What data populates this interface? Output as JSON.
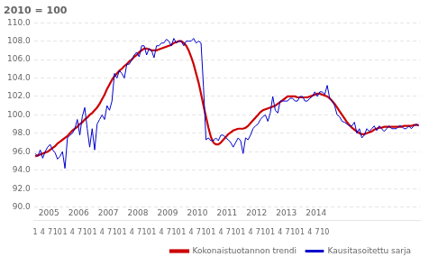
{
  "chart_data": {
    "type": "line",
    "title": "2010 = 100",
    "categories": [
      "1",
      null,
      null,
      "4",
      null,
      null,
      "7",
      null,
      null,
      "10",
      null,
      null,
      "1",
      null,
      null,
      "4",
      null,
      null,
      "7",
      null,
      null,
      "10",
      null,
      null,
      "1",
      null,
      null,
      "4",
      null,
      null,
      "7",
      null,
      null,
      "10",
      null,
      null,
      "1",
      null,
      null,
      "4",
      null,
      null,
      "7",
      null,
      null,
      "10",
      null,
      null,
      "1",
      null,
      null,
      "4",
      null,
      null,
      "7",
      null,
      null,
      "10",
      null,
      null,
      "1",
      null,
      null,
      "4",
      null,
      null,
      "7",
      null,
      null,
      "10",
      null,
      null,
      "1",
      null,
      null,
      "4",
      null,
      null,
      "7",
      null,
      null,
      "10",
      null,
      null,
      "1",
      null,
      null,
      "4",
      null,
      null,
      "7",
      null,
      null,
      "10",
      null,
      null,
      "1",
      null,
      null,
      "4",
      null,
      null,
      "7",
      null,
      null,
      "10",
      null,
      null,
      "1",
      null,
      null,
      "4",
      null,
      null,
      "7",
      null,
      null,
      "10",
      null,
      null,
      null,
      null,
      null,
      null,
      null,
      null,
      null,
      null,
      null,
      null,
      null,
      null,
      null,
      null,
      null,
      null,
      null,
      null,
      null,
      null,
      null,
      null,
      null,
      null,
      null,
      null,
      null,
      null,
      null,
      null,
      null,
      null,
      null,
      null,
      null,
      null
    ],
    "x_groups": [
      "2005",
      "2006",
      "2007",
      "2008",
      "2009",
      "2010",
      "2011",
      "2012",
      "2013",
      "2014"
    ],
    "series": [
      {
        "name": "Kausitasoitettu sarja",
        "color": "#0000cc",
        "values": [
          95.8,
          95.5,
          96.2,
          95.3,
          96.0,
          96.5,
          96.8,
          96.2,
          95.9,
          95.2,
          95.5,
          96.0,
          94.2,
          97.5,
          97.8,
          98.0,
          98.5,
          99.5,
          97.8,
          99.8,
          100.8,
          98.5,
          96.5,
          98.5,
          96.2,
          99.0,
          99.5,
          100.0,
          99.5,
          101.0,
          100.5,
          101.5,
          104.5,
          104.0,
          104.8,
          104.5,
          104.0,
          105.5,
          105.5,
          106.0,
          106.5,
          106.8,
          106.3,
          107.5,
          107.5,
          106.5,
          107.2,
          107.0,
          106.2,
          107.5,
          107.5,
          107.8,
          107.8,
          108.2,
          108.0,
          107.5,
          108.3,
          107.8,
          108.0,
          108.0,
          107.5,
          108.0,
          108.0,
          108.0,
          108.3,
          107.8,
          108.0,
          107.8,
          103.0,
          97.3,
          97.5,
          97.2,
          97.2,
          97.5,
          97.2,
          97.8,
          97.8,
          97.5,
          97.3,
          97.0,
          96.5,
          97.0,
          97.5,
          97.2,
          95.8,
          97.5,
          97.3,
          97.8,
          98.5,
          98.8,
          99.0,
          99.5,
          99.8,
          100.0,
          99.3,
          100.2,
          102.0,
          100.5,
          100.2,
          101.5,
          101.5,
          101.5,
          101.5,
          101.8,
          101.8,
          101.5,
          101.5,
          102.0,
          102.0,
          101.5,
          101.5,
          101.8,
          102.0,
          102.5,
          102.0,
          102.5,
          102.5,
          102.2,
          103.2,
          101.8,
          101.5,
          101.0,
          100.0,
          99.8,
          99.3,
          99.2,
          99.0,
          98.8,
          98.8,
          99.2,
          98.0,
          98.5,
          97.5,
          97.8,
          98.5,
          98.2,
          98.5,
          98.8,
          98.3,
          98.8,
          98.5,
          98.2,
          98.5,
          98.8,
          98.5,
          98.5,
          98.5,
          98.8,
          98.8,
          98.5,
          98.5,
          98.8,
          98.5,
          98.8,
          99.0,
          98.8
        ]
      },
      {
        "name": "Kokonaistuotannon trendi",
        "color": "#cc0000",
        "values": [
          95.5,
          95.6,
          95.7,
          95.8,
          95.9,
          96.0,
          96.2,
          96.4,
          96.6,
          96.9,
          97.1,
          97.3,
          97.5,
          97.7,
          98.0,
          98.3,
          98.5,
          98.7,
          99.0,
          99.2,
          99.5,
          99.7,
          100.0,
          100.2,
          100.5,
          100.8,
          101.2,
          101.7,
          102.2,
          102.8,
          103.3,
          103.8,
          104.2,
          104.5,
          104.8,
          105.0,
          105.3,
          105.5,
          105.8,
          106.0,
          106.3,
          106.5,
          106.8,
          107.0,
          107.2,
          107.2,
          107.1,
          107.0,
          107.0,
          107.0,
          107.1,
          107.2,
          107.3,
          107.4,
          107.5,
          107.6,
          107.8,
          107.9,
          108.0,
          108.0,
          107.8,
          107.5,
          107.0,
          106.3,
          105.5,
          104.5,
          103.5,
          102.3,
          101.0,
          99.8,
          98.6,
          97.6,
          97.0,
          96.8,
          96.8,
          97.0,
          97.3,
          97.6,
          97.9,
          98.1,
          98.3,
          98.4,
          98.5,
          98.5,
          98.5,
          98.6,
          98.8,
          99.1,
          99.4,
          99.7,
          100.0,
          100.3,
          100.5,
          100.6,
          100.7,
          100.8,
          100.9,
          101.0,
          101.2,
          101.4,
          101.6,
          101.8,
          102.0,
          102.0,
          102.0,
          102.0,
          101.9,
          101.9,
          101.9,
          101.9,
          101.9,
          102.0,
          102.1,
          102.2,
          102.3,
          102.3,
          102.2,
          102.1,
          102.0,
          101.8,
          101.5,
          101.2,
          100.8,
          100.4,
          100.0,
          99.6,
          99.2,
          98.9,
          98.6,
          98.4,
          98.2,
          98.0,
          97.9,
          97.9,
          98.0,
          98.1,
          98.2,
          98.4,
          98.5,
          98.6,
          98.6,
          98.7,
          98.7,
          98.7,
          98.7,
          98.7,
          98.7,
          98.7,
          98.7,
          98.8,
          98.8,
          98.8,
          98.8,
          98.9,
          98.9,
          98.9
        ]
      }
    ],
    "ylim": [
      90.0,
      110.0
    ],
    "yticks": [
      {
        "value": 90.0,
        "label": "90.0"
      },
      {
        "value": 92.0,
        "label": "92.0"
      },
      {
        "value": 94.0,
        "label": "94.0"
      },
      {
        "value": 96.0,
        "label": "96.0"
      },
      {
        "value": 98.0,
        "label": "98.0"
      },
      {
        "value": 100.0,
        "label": "100.0"
      },
      {
        "value": 102.0,
        "label": "102.0"
      },
      {
        "value": 104.0,
        "label": "104.0"
      },
      {
        "value": 106.0,
        "label": "106.0"
      },
      {
        "value": 108.0,
        "label": "108.0"
      },
      {
        "value": 110.0,
        "label": "110.0"
      }
    ],
    "grid": true,
    "legend": "lower right"
  }
}
